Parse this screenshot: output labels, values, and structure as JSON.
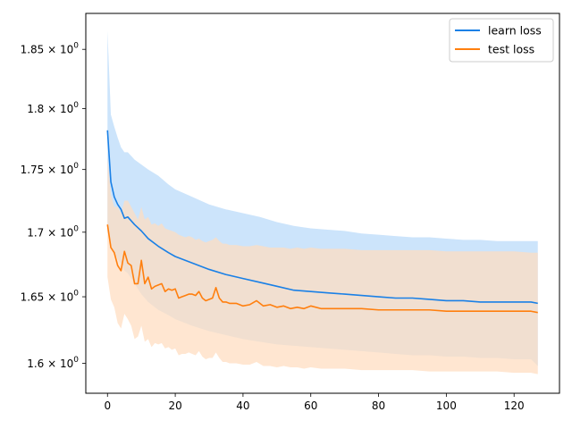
{
  "chart_data": {
    "type": "line",
    "title": "",
    "xlabel": "",
    "ylabel": "",
    "yscale": "log",
    "xlim": [
      -6.4,
      133.4
    ],
    "ylim": [
      1.578,
      1.881
    ],
    "grid": false,
    "legend_position": "top-right",
    "x_ticks": [
      0,
      20,
      40,
      60,
      80,
      100,
      120
    ],
    "x_tick_labels": [
      "0",
      "20",
      "40",
      "60",
      "80",
      "100",
      "120"
    ],
    "y_ticks": [
      1.6,
      1.65,
      1.7,
      1.75,
      1.8,
      1.85
    ],
    "y_tick_labels": [
      {
        "mantissa": "1.6",
        "exp": "0"
      },
      {
        "mantissa": "1.65",
        "exp": "0"
      },
      {
        "mantissa": "1.7",
        "exp": "0"
      },
      {
        "mantissa": "1.75",
        "exp": "0"
      },
      {
        "mantissa": "1.8",
        "exp": "0"
      },
      {
        "mantissa": "1.85",
        "exp": "0"
      }
    ],
    "series": [
      {
        "name": "learn loss",
        "color": "#1a80e6",
        "band_color": "#cce4fb",
        "x": [
          0,
          1,
          2,
          3,
          4,
          5,
          6,
          8,
          10,
          12,
          15,
          18,
          20,
          25,
          30,
          35,
          40,
          45,
          50,
          55,
          60,
          65,
          70,
          75,
          80,
          85,
          90,
          95,
          100,
          105,
          110,
          115,
          120,
          125,
          127
        ],
        "values": [
          1.782,
          1.74,
          1.728,
          1.722,
          1.718,
          1.711,
          1.712,
          1.706,
          1.701,
          1.695,
          1.689,
          1.684,
          1.681,
          1.676,
          1.671,
          1.667,
          1.664,
          1.661,
          1.658,
          1.655,
          1.654,
          1.653,
          1.652,
          1.651,
          1.65,
          1.649,
          1.649,
          1.648,
          1.647,
          1.647,
          1.646,
          1.646,
          1.646,
          1.646,
          1.645
        ],
        "upper": [
          1.866,
          1.795,
          1.785,
          1.776,
          1.768,
          1.764,
          1.764,
          1.758,
          1.754,
          1.75,
          1.745,
          1.738,
          1.734,
          1.728,
          1.722,
          1.718,
          1.715,
          1.712,
          1.708,
          1.705,
          1.703,
          1.702,
          1.701,
          1.699,
          1.698,
          1.697,
          1.696,
          1.696,
          1.695,
          1.694,
          1.694,
          1.693,
          1.693,
          1.693,
          1.693
        ],
        "lower": [
          1.7,
          1.69,
          1.684,
          1.679,
          1.675,
          1.67,
          1.668,
          1.66,
          1.652,
          1.646,
          1.64,
          1.636,
          1.633,
          1.628,
          1.624,
          1.621,
          1.618,
          1.616,
          1.614,
          1.613,
          1.612,
          1.611,
          1.61,
          1.609,
          1.608,
          1.607,
          1.606,
          1.606,
          1.605,
          1.605,
          1.604,
          1.604,
          1.603,
          1.603,
          1.598
        ]
      },
      {
        "name": "test loss",
        "color": "#ff7f0e",
        "band_color": "#ffdcbf",
        "x": [
          0,
          1,
          2,
          3,
          4,
          5,
          6,
          7,
          8,
          9,
          10,
          11,
          12,
          13,
          14,
          15,
          16,
          17,
          18,
          19,
          20,
          21,
          22,
          23,
          24,
          25,
          26,
          27,
          28,
          29,
          30,
          31,
          32,
          33,
          34,
          35,
          36,
          38,
          40,
          42,
          44,
          46,
          48,
          50,
          52,
          54,
          56,
          58,
          60,
          63,
          66,
          70,
          75,
          80,
          85,
          90,
          95,
          100,
          105,
          110,
          115,
          120,
          125,
          127
        ],
        "values": [
          1.706,
          1.688,
          1.684,
          1.674,
          1.67,
          1.685,
          1.676,
          1.674,
          1.66,
          1.66,
          1.678,
          1.66,
          1.665,
          1.656,
          1.658,
          1.659,
          1.66,
          1.654,
          1.656,
          1.655,
          1.656,
          1.649,
          1.65,
          1.651,
          1.652,
          1.652,
          1.651,
          1.654,
          1.649,
          1.647,
          1.648,
          1.649,
          1.657,
          1.649,
          1.646,
          1.646,
          1.645,
          1.645,
          1.643,
          1.644,
          1.647,
          1.643,
          1.644,
          1.642,
          1.643,
          1.641,
          1.642,
          1.641,
          1.643,
          1.641,
          1.641,
          1.641,
          1.641,
          1.64,
          1.64,
          1.64,
          1.64,
          1.639,
          1.639,
          1.639,
          1.639,
          1.639,
          1.639,
          1.638
        ],
        "upper": [
          1.76,
          1.73,
          1.72,
          1.72,
          1.715,
          1.725,
          1.725,
          1.72,
          1.715,
          1.71,
          1.72,
          1.71,
          1.712,
          1.706,
          1.707,
          1.705,
          1.707,
          1.703,
          1.702,
          1.701,
          1.7,
          1.698,
          1.697,
          1.696,
          1.697,
          1.696,
          1.694,
          1.695,
          1.693,
          1.692,
          1.693,
          1.694,
          1.696,
          1.693,
          1.691,
          1.691,
          1.69,
          1.69,
          1.689,
          1.689,
          1.69,
          1.689,
          1.688,
          1.688,
          1.688,
          1.687,
          1.688,
          1.687,
          1.688,
          1.687,
          1.687,
          1.687,
          1.686,
          1.686,
          1.686,
          1.686,
          1.686,
          1.685,
          1.685,
          1.685,
          1.685,
          1.685,
          1.684,
          1.684
        ],
        "lower": [
          1.665,
          1.648,
          1.642,
          1.63,
          1.626,
          1.637,
          1.633,
          1.628,
          1.618,
          1.62,
          1.628,
          1.616,
          1.618,
          1.612,
          1.615,
          1.614,
          1.615,
          1.611,
          1.612,
          1.61,
          1.611,
          1.606,
          1.607,
          1.607,
          1.608,
          1.607,
          1.606,
          1.609,
          1.605,
          1.603,
          1.604,
          1.604,
          1.608,
          1.604,
          1.601,
          1.601,
          1.6,
          1.6,
          1.599,
          1.599,
          1.601,
          1.598,
          1.598,
          1.597,
          1.598,
          1.597,
          1.597,
          1.596,
          1.597,
          1.596,
          1.596,
          1.596,
          1.595,
          1.595,
          1.595,
          1.595,
          1.594,
          1.594,
          1.594,
          1.594,
          1.594,
          1.593,
          1.593,
          1.592
        ]
      }
    ]
  }
}
